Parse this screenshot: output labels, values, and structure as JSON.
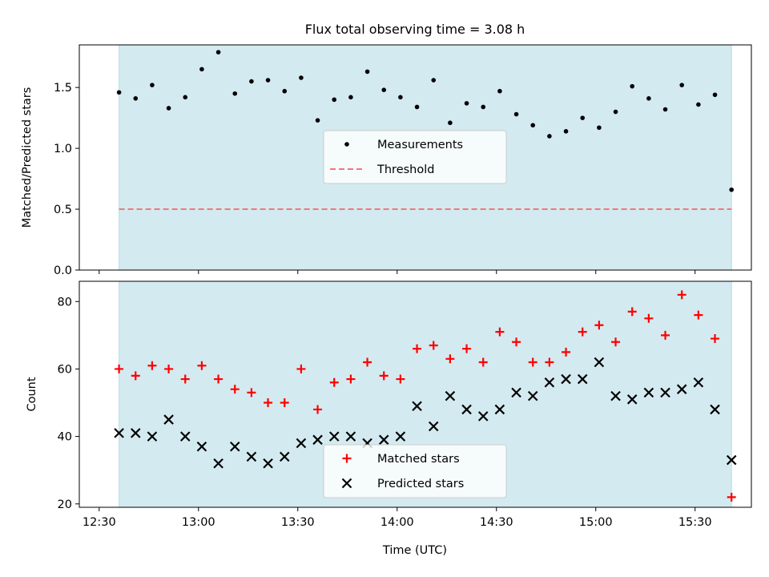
{
  "figure": {
    "title": "Flux total observing time = 3.08 h",
    "xlabel": "Time (UTC)",
    "shade_color": "#d3eaf0"
  },
  "chart_data": [
    {
      "type": "scatter",
      "ylabel": "Matched/Predicted stars",
      "ylim": [
        0.0,
        1.85
      ],
      "yticks": [
        0.0,
        0.5,
        1.0,
        1.5
      ],
      "ytick_labels": [
        "0.0",
        "0.5",
        "1.0",
        "1.5"
      ],
      "grid": false,
      "legend_position": "center",
      "series": [
        {
          "name": "Measurements",
          "kind": "dot",
          "color": "#000000",
          "x": [
            "12:36",
            "12:41",
            "12:46",
            "12:51",
            "12:56",
            "13:01",
            "13:06",
            "13:11",
            "13:16",
            "13:21",
            "13:26",
            "13:31",
            "13:36",
            "13:41",
            "13:46",
            "13:51",
            "13:56",
            "14:01",
            "14:06",
            "14:11",
            "14:16",
            "14:21",
            "14:26",
            "14:31",
            "14:36",
            "14:41",
            "14:46",
            "14:51",
            "14:56",
            "15:01",
            "15:06",
            "15:11",
            "15:16",
            "15:21",
            "15:26",
            "15:31",
            "15:36",
            "15:41"
          ],
          "y": [
            1.46,
            1.41,
            1.52,
            1.33,
            1.42,
            1.65,
            1.79,
            1.45,
            1.55,
            1.56,
            1.47,
            1.58,
            1.23,
            1.4,
            1.42,
            1.63,
            1.48,
            1.42,
            1.34,
            1.56,
            1.21,
            1.37,
            1.34,
            1.47,
            1.28,
            1.19,
            1.1,
            1.14,
            1.25,
            1.17,
            1.3,
            1.51,
            1.41,
            1.32,
            1.52,
            1.36,
            1.44,
            0.66
          ]
        },
        {
          "name": "Threshold",
          "kind": "dashed-line",
          "color": "#f07878",
          "x": [
            "12:36",
            "15:41"
          ],
          "y": [
            0.5,
            0.5
          ]
        }
      ]
    },
    {
      "type": "scatter",
      "ylabel": "Count",
      "ylim": [
        19,
        86
      ],
      "yticks": [
        20,
        40,
        60,
        80
      ],
      "ytick_labels": [
        "20",
        "40",
        "60",
        "80"
      ],
      "grid": false,
      "legend_position": "bottom-center",
      "series": [
        {
          "name": "Matched stars",
          "kind": "plus",
          "color": "#ff0000",
          "x": [
            "12:36",
            "12:41",
            "12:46",
            "12:51",
            "12:56",
            "13:01",
            "13:06",
            "13:11",
            "13:16",
            "13:21",
            "13:26",
            "13:31",
            "13:36",
            "13:41",
            "13:46",
            "13:51",
            "13:56",
            "14:01",
            "14:06",
            "14:11",
            "14:16",
            "14:21",
            "14:26",
            "14:31",
            "14:36",
            "14:41",
            "14:46",
            "14:51",
            "14:56",
            "15:01",
            "15:06",
            "15:11",
            "15:16",
            "15:21",
            "15:26",
            "15:31",
            "15:36",
            "15:41"
          ],
          "y": [
            60,
            58,
            61,
            60,
            57,
            61,
            57,
            54,
            53,
            50,
            50,
            60,
            48,
            56,
            57,
            62,
            58,
            57,
            66,
            67,
            63,
            66,
            62,
            71,
            68,
            62,
            62,
            65,
            71,
            73,
            68,
            77,
            75,
            70,
            82,
            76,
            69,
            22
          ]
        },
        {
          "name": "Predicted stars",
          "kind": "x",
          "color": "#000000",
          "x": [
            "12:36",
            "12:41",
            "12:46",
            "12:51",
            "12:56",
            "13:01",
            "13:06",
            "13:11",
            "13:16",
            "13:21",
            "13:26",
            "13:31",
            "13:36",
            "13:41",
            "13:46",
            "13:51",
            "13:56",
            "14:01",
            "14:06",
            "14:11",
            "14:16",
            "14:21",
            "14:26",
            "14:31",
            "14:36",
            "14:41",
            "14:46",
            "14:51",
            "14:56",
            "15:01",
            "15:06",
            "15:11",
            "15:16",
            "15:21",
            "15:26",
            "15:31",
            "15:36",
            "15:41"
          ],
          "y": [
            41,
            41,
            40,
            45,
            40,
            37,
            32,
            37,
            34,
            32,
            34,
            38,
            39,
            40,
            40,
            38,
            39,
            40,
            49,
            43,
            52,
            48,
            46,
            48,
            53,
            52,
            56,
            57,
            57,
            62,
            52,
            51,
            53,
            53,
            54,
            56,
            48,
            33
          ]
        }
      ]
    }
  ],
  "x_axis": {
    "range": [
      "12:24",
      "15:47"
    ],
    "ticks": [
      "12:30",
      "13:00",
      "13:30",
      "14:00",
      "14:30",
      "15:00",
      "15:30"
    ],
    "tick_labels": [
      "12:30",
      "13:00",
      "13:30",
      "14:00",
      "14:30",
      "15:00",
      "15:30"
    ],
    "shade_range": [
      "12:36",
      "15:41"
    ]
  }
}
